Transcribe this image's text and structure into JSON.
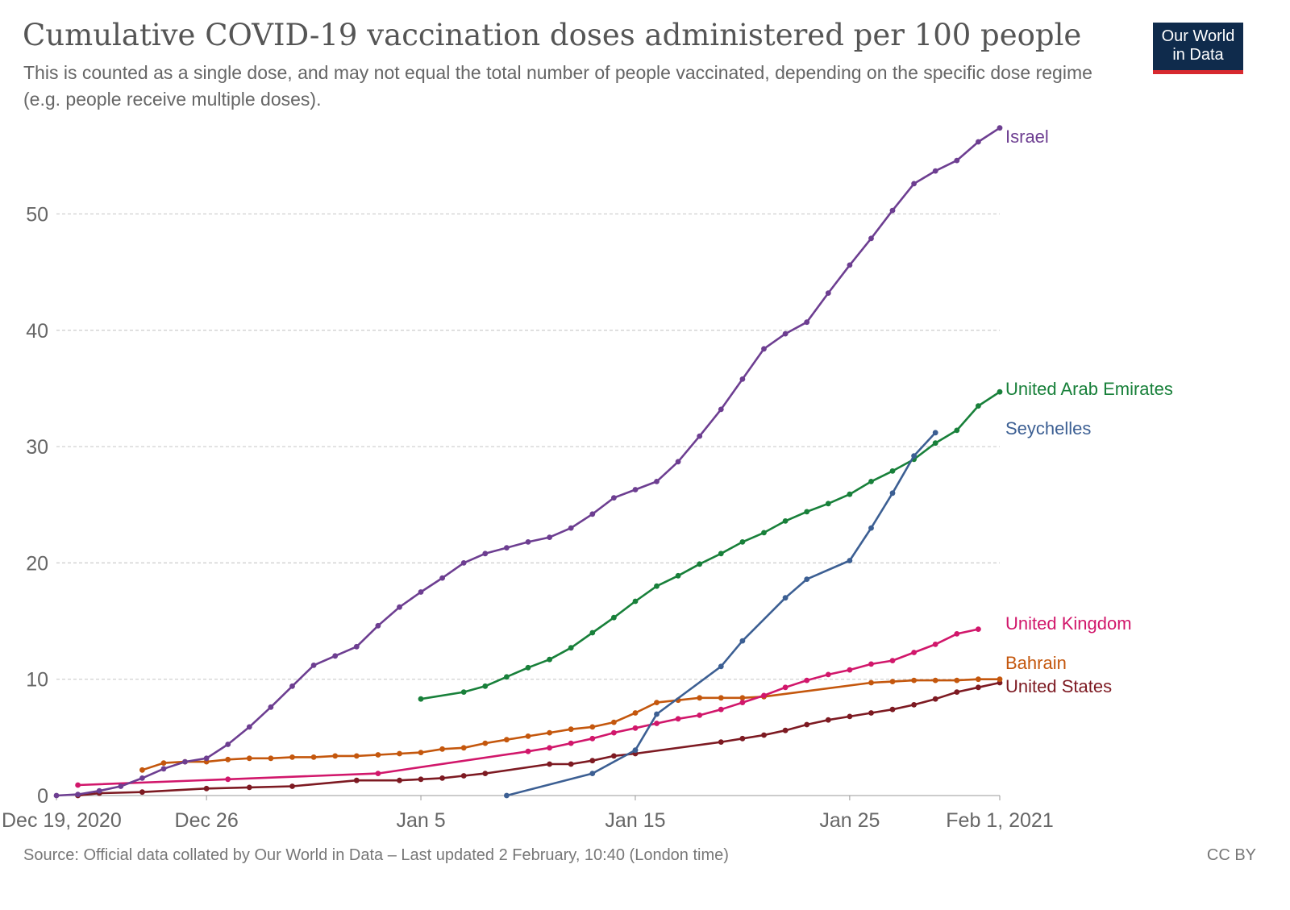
{
  "header": {
    "title": "Cumulative COVID-19 vaccination doses administered per 100 people",
    "subtitle": "This is counted as a single dose, and may not equal the total number of people vaccinated, depending on the specific dose regime (e.g. people receive multiple doses).",
    "logo_line1": "Our World",
    "logo_line2": "in Data"
  },
  "footer": {
    "source": "Source: Official data collated by Our World in Data – Last updated 2 February, 10:40 (London time)",
    "license": "CC BY"
  },
  "colors": {
    "logo_bg": "#0f2b4c",
    "logo_accent": "#d7292f"
  },
  "chart_data": {
    "type": "line",
    "title": "Cumulative COVID-19 vaccination doses administered per 100 people",
    "ylim": [
      0,
      58
    ],
    "yticks": [
      0,
      10,
      20,
      30,
      40,
      50
    ],
    "xlim": [
      "2020-12-19",
      "2021-02-01"
    ],
    "xticks": [
      {
        "date": "2020-12-19",
        "label": "Dec 19, 2020"
      },
      {
        "date": "2020-12-26",
        "label": "Dec 26"
      },
      {
        "date": "2021-01-05",
        "label": "Jan 5"
      },
      {
        "date": "2021-01-15",
        "label": "Jan 15"
      },
      {
        "date": "2021-01-25",
        "label": "Jan 25"
      },
      {
        "date": "2021-02-01",
        "label": "Feb 1, 2021"
      }
    ],
    "grid": true,
    "legend": "line-end labels",
    "series": [
      {
        "name": "Israel",
        "color": "#6d3e91",
        "points": [
          [
            "2020-12-19",
            0.0
          ],
          [
            "2020-12-20",
            0.1
          ],
          [
            "2020-12-21",
            0.4
          ],
          [
            "2020-12-22",
            0.8
          ],
          [
            "2020-12-23",
            1.5
          ],
          [
            "2020-12-24",
            2.3
          ],
          [
            "2020-12-25",
            2.9
          ],
          [
            "2020-12-26",
            3.2
          ],
          [
            "2020-12-27",
            4.4
          ],
          [
            "2020-12-28",
            5.9
          ],
          [
            "2020-12-29",
            7.6
          ],
          [
            "2020-12-30",
            9.4
          ],
          [
            "2020-12-31",
            11.2
          ],
          [
            "2021-01-01",
            12.0
          ],
          [
            "2021-01-02",
            12.8
          ],
          [
            "2021-01-03",
            14.6
          ],
          [
            "2021-01-04",
            16.2
          ],
          [
            "2021-01-05",
            17.5
          ],
          [
            "2021-01-06",
            18.7
          ],
          [
            "2021-01-07",
            20.0
          ],
          [
            "2021-01-08",
            20.8
          ],
          [
            "2021-01-09",
            21.3
          ],
          [
            "2021-01-10",
            21.8
          ],
          [
            "2021-01-11",
            22.2
          ],
          [
            "2021-01-12",
            23.0
          ],
          [
            "2021-01-13",
            24.2
          ],
          [
            "2021-01-14",
            25.6
          ],
          [
            "2021-01-15",
            26.3
          ],
          [
            "2021-01-16",
            27.0
          ],
          [
            "2021-01-17",
            28.7
          ],
          [
            "2021-01-18",
            30.9
          ],
          [
            "2021-01-19",
            33.2
          ],
          [
            "2021-01-20",
            35.8
          ],
          [
            "2021-01-21",
            38.4
          ],
          [
            "2021-01-22",
            39.7
          ],
          [
            "2021-01-23",
            40.7
          ],
          [
            "2021-01-24",
            43.2
          ],
          [
            "2021-01-25",
            45.6
          ],
          [
            "2021-01-26",
            47.9
          ],
          [
            "2021-01-27",
            50.3
          ],
          [
            "2021-01-28",
            52.6
          ],
          [
            "2021-01-29",
            53.7
          ],
          [
            "2021-01-30",
            54.6
          ],
          [
            "2021-01-31",
            56.2
          ],
          [
            "2021-02-01",
            57.4
          ]
        ]
      },
      {
        "name": "United Arab Emirates",
        "color": "#18803a",
        "points": [
          [
            "2021-01-05",
            8.3
          ],
          [
            "2021-01-07",
            8.9
          ],
          [
            "2021-01-08",
            9.4
          ],
          [
            "2021-01-09",
            10.2
          ],
          [
            "2021-01-10",
            11.0
          ],
          [
            "2021-01-11",
            11.7
          ],
          [
            "2021-01-12",
            12.7
          ],
          [
            "2021-01-13",
            14.0
          ],
          [
            "2021-01-14",
            15.3
          ],
          [
            "2021-01-15",
            16.7
          ],
          [
            "2021-01-16",
            18.0
          ],
          [
            "2021-01-17",
            18.9
          ],
          [
            "2021-01-18",
            19.9
          ],
          [
            "2021-01-19",
            20.8
          ],
          [
            "2021-01-20",
            21.8
          ],
          [
            "2021-01-21",
            22.6
          ],
          [
            "2021-01-22",
            23.6
          ],
          [
            "2021-01-23",
            24.4
          ],
          [
            "2021-01-24",
            25.1
          ],
          [
            "2021-01-25",
            25.9
          ],
          [
            "2021-01-26",
            27.0
          ],
          [
            "2021-01-27",
            27.9
          ],
          [
            "2021-01-28",
            28.9
          ],
          [
            "2021-01-29",
            30.3
          ],
          [
            "2021-01-30",
            31.4
          ],
          [
            "2021-01-31",
            33.5
          ],
          [
            "2021-02-01",
            34.7
          ]
        ]
      },
      {
        "name": "Seychelles",
        "color": "#3c5f93",
        "points": [
          [
            "2021-01-09",
            0.0
          ],
          [
            "2021-01-13",
            1.9
          ],
          [
            "2021-01-15",
            3.9
          ],
          [
            "2021-01-16",
            7.0
          ],
          [
            "2021-01-19",
            11.1
          ],
          [
            "2021-01-20",
            13.3
          ],
          [
            "2021-01-22",
            17.0
          ],
          [
            "2021-01-23",
            18.6
          ],
          [
            "2021-01-25",
            20.2
          ],
          [
            "2021-01-26",
            23.0
          ],
          [
            "2021-01-27",
            26.0
          ],
          [
            "2021-01-28",
            29.2
          ],
          [
            "2021-01-29",
            31.2
          ]
        ]
      },
      {
        "name": "United Kingdom",
        "color": "#d1176b",
        "points": [
          [
            "2020-12-20",
            0.9
          ],
          [
            "2020-12-27",
            1.4
          ],
          [
            "2021-01-03",
            1.9
          ],
          [
            "2021-01-10",
            3.8
          ],
          [
            "2021-01-11",
            4.1
          ],
          [
            "2021-01-12",
            4.5
          ],
          [
            "2021-01-13",
            4.9
          ],
          [
            "2021-01-14",
            5.4
          ],
          [
            "2021-01-15",
            5.8
          ],
          [
            "2021-01-16",
            6.2
          ],
          [
            "2021-01-17",
            6.6
          ],
          [
            "2021-01-18",
            6.9
          ],
          [
            "2021-01-19",
            7.4
          ],
          [
            "2021-01-20",
            8.0
          ],
          [
            "2021-01-21",
            8.6
          ],
          [
            "2021-01-22",
            9.3
          ],
          [
            "2021-01-23",
            9.9
          ],
          [
            "2021-01-24",
            10.4
          ],
          [
            "2021-01-25",
            10.8
          ],
          [
            "2021-01-26",
            11.3
          ],
          [
            "2021-01-27",
            11.6
          ],
          [
            "2021-01-28",
            12.3
          ],
          [
            "2021-01-29",
            13.0
          ],
          [
            "2021-01-30",
            13.9
          ],
          [
            "2021-01-31",
            14.3
          ]
        ]
      },
      {
        "name": "Bahrain",
        "color": "#c4570d",
        "points": [
          [
            "2020-12-23",
            2.2
          ],
          [
            "2020-12-24",
            2.8
          ],
          [
            "2020-12-25",
            2.9
          ],
          [
            "2020-12-26",
            2.9
          ],
          [
            "2020-12-27",
            3.1
          ],
          [
            "2020-12-28",
            3.2
          ],
          [
            "2020-12-29",
            3.2
          ],
          [
            "2020-12-30",
            3.3
          ],
          [
            "2020-12-31",
            3.3
          ],
          [
            "2021-01-01",
            3.4
          ],
          [
            "2021-01-02",
            3.4
          ],
          [
            "2021-01-03",
            3.5
          ],
          [
            "2021-01-04",
            3.6
          ],
          [
            "2021-01-05",
            3.7
          ],
          [
            "2021-01-06",
            4.0
          ],
          [
            "2021-01-07",
            4.1
          ],
          [
            "2021-01-08",
            4.5
          ],
          [
            "2021-01-09",
            4.8
          ],
          [
            "2021-01-10",
            5.1
          ],
          [
            "2021-01-11",
            5.4
          ],
          [
            "2021-01-12",
            5.7
          ],
          [
            "2021-01-13",
            5.9
          ],
          [
            "2021-01-14",
            6.3
          ],
          [
            "2021-01-15",
            7.1
          ],
          [
            "2021-01-16",
            8.0
          ],
          [
            "2021-01-17",
            8.2
          ],
          [
            "2021-01-18",
            8.4
          ],
          [
            "2021-01-19",
            8.4
          ],
          [
            "2021-01-20",
            8.4
          ],
          [
            "2021-01-21",
            8.5
          ],
          [
            "2021-01-26",
            9.7
          ],
          [
            "2021-01-27",
            9.8
          ],
          [
            "2021-01-28",
            9.9
          ],
          [
            "2021-01-29",
            9.9
          ],
          [
            "2021-01-30",
            9.9
          ],
          [
            "2021-01-31",
            10.0
          ],
          [
            "2021-02-01",
            10.0
          ]
        ]
      },
      {
        "name": "United States",
        "color": "#7d1a22",
        "points": [
          [
            "2020-12-20",
            0.0
          ],
          [
            "2020-12-21",
            0.2
          ],
          [
            "2020-12-23",
            0.3
          ],
          [
            "2020-12-26",
            0.6
          ],
          [
            "2020-12-28",
            0.7
          ],
          [
            "2020-12-30",
            0.8
          ],
          [
            "2021-01-02",
            1.3
          ],
          [
            "2021-01-04",
            1.3
          ],
          [
            "2021-01-05",
            1.4
          ],
          [
            "2021-01-06",
            1.5
          ],
          [
            "2021-01-07",
            1.7
          ],
          [
            "2021-01-08",
            1.9
          ],
          [
            "2021-01-11",
            2.7
          ],
          [
            "2021-01-12",
            2.7
          ],
          [
            "2021-01-13",
            3.0
          ],
          [
            "2021-01-14",
            3.4
          ],
          [
            "2021-01-15",
            3.6
          ],
          [
            "2021-01-19",
            4.6
          ],
          [
            "2021-01-20",
            4.9
          ],
          [
            "2021-01-21",
            5.2
          ],
          [
            "2021-01-22",
            5.6
          ],
          [
            "2021-01-23",
            6.1
          ],
          [
            "2021-01-24",
            6.5
          ],
          [
            "2021-01-25",
            6.8
          ],
          [
            "2021-01-26",
            7.1
          ],
          [
            "2021-01-27",
            7.4
          ],
          [
            "2021-01-28",
            7.8
          ],
          [
            "2021-01-29",
            8.3
          ],
          [
            "2021-01-30",
            8.9
          ],
          [
            "2021-01-31",
            9.3
          ],
          [
            "2021-02-01",
            9.7
          ]
        ]
      }
    ]
  }
}
